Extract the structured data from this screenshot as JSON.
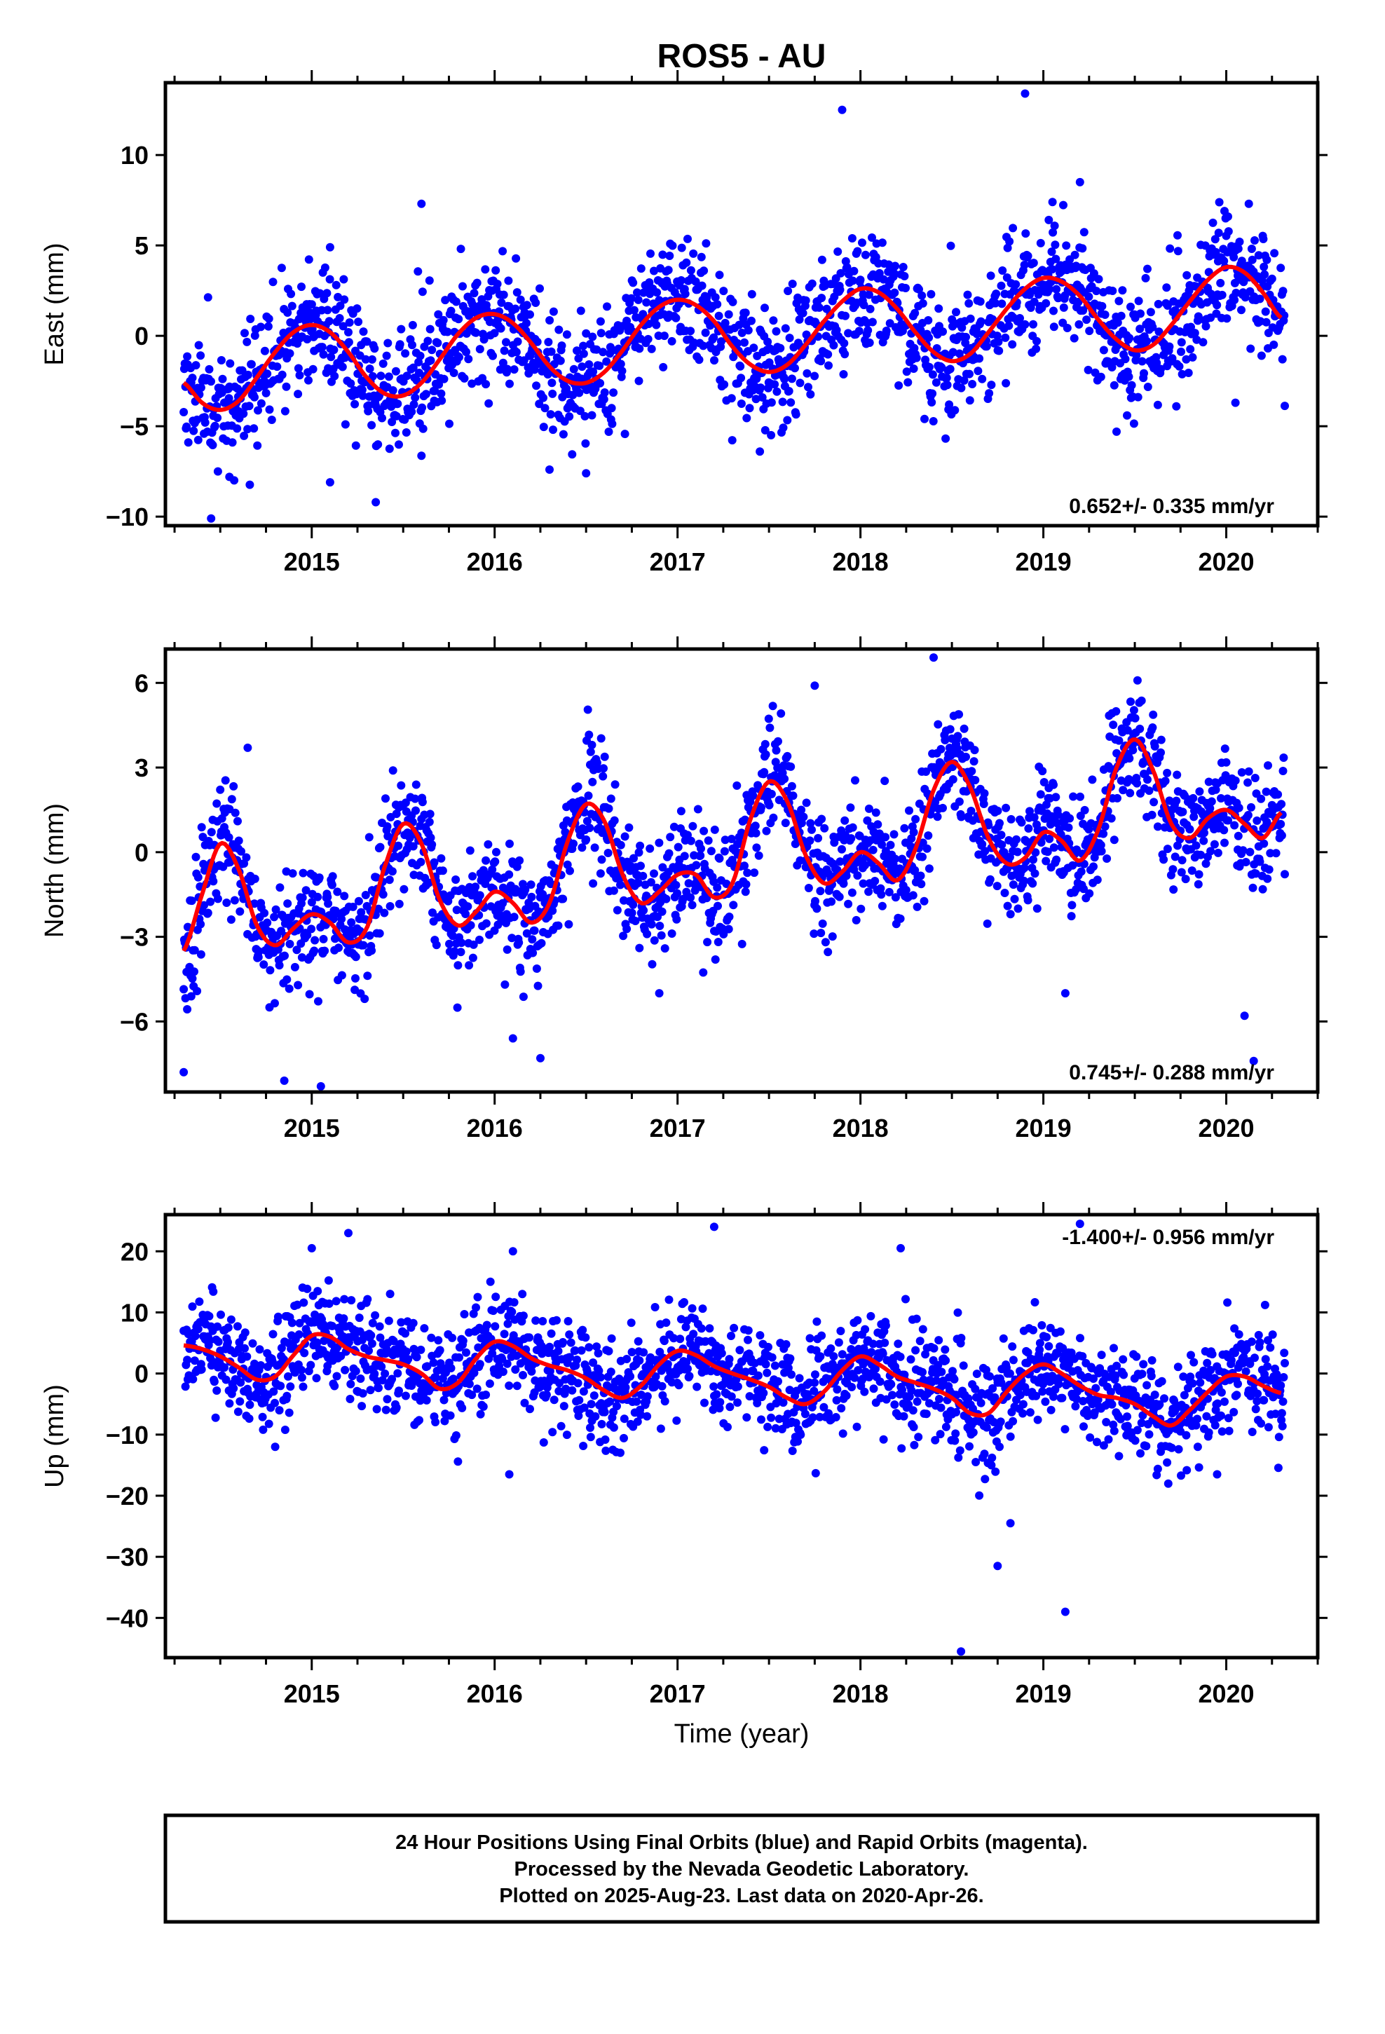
{
  "chart_data": {
    "title": "ROS5 - AU",
    "xlabel": "Time (year)",
    "footer": [
      "24 Hour Positions Using Final Orbits (blue) and Rapid Orbits (magenta).",
      "Processed by the Nevada Geodetic Laboratory.",
      "Plotted on 2025-Aug-23. Last data on 2020-Apr-26."
    ],
    "colors": {
      "points": "#0000ff",
      "fit": "#ff0000",
      "frame": "#000000"
    },
    "panels": [
      {
        "type": "scatter",
        "ylabel": "East (mm)",
        "ylim": [
          -10.5,
          14
        ],
        "xlim": [
          2014.2,
          2020.5
        ],
        "yticks": [
          -10,
          -5,
          0,
          5,
          10
        ],
        "xticks": [
          2015,
          2016,
          2017,
          2018,
          2019,
          2020
        ],
        "rate_text": "0.652+/- 0.335 mm/yr",
        "rate_position": "bottom-right",
        "fit": {
          "x": [
            2014.3,
            2014.4,
            2014.5,
            2014.6,
            2014.7,
            2014.8,
            2014.9,
            2015.0,
            2015.1,
            2015.2,
            2015.3,
            2015.4,
            2015.5,
            2015.6,
            2015.7,
            2015.8,
            2015.9,
            2016.0,
            2016.1,
            2016.2,
            2016.3,
            2016.4,
            2016.5,
            2016.6,
            2016.7,
            2016.8,
            2016.9,
            2017.0,
            2017.1,
            2017.2,
            2017.3,
            2017.4,
            2017.5,
            2017.6,
            2017.7,
            2017.8,
            2017.9,
            2018.0,
            2018.1,
            2018.2,
            2018.3,
            2018.4,
            2018.5,
            2018.6,
            2018.7,
            2018.8,
            2018.9,
            2019.0,
            2019.1,
            2019.2,
            2019.3,
            2019.4,
            2019.5,
            2019.6,
            2019.7,
            2019.8,
            2019.9,
            2020.0,
            2020.1,
            2020.2,
            2020.3
          ],
          "y": [
            -2.6,
            -3.7,
            -4.1,
            -3.6,
            -2.3,
            -0.9,
            0.2,
            0.6,
            0.2,
            -0.9,
            -2.3,
            -3.2,
            -3.3,
            -2.6,
            -1.3,
            0.1,
            1.0,
            1.2,
            0.7,
            -0.4,
            -1.7,
            -2.5,
            -2.6,
            -2.0,
            -0.8,
            0.6,
            1.6,
            2.0,
            1.7,
            0.8,
            -0.6,
            -1.6,
            -2.0,
            -1.6,
            -0.5,
            0.8,
            1.9,
            2.6,
            2.4,
            1.5,
            0.2,
            -0.9,
            -1.4,
            -1.0,
            0.2,
            1.5,
            2.6,
            3.2,
            3.0,
            2.2,
            0.9,
            -0.2,
            -0.8,
            -0.5,
            0.6,
            1.9,
            3.1,
            3.8,
            3.5,
            2.4,
            1.0
          ]
        },
        "points_model": {
          "comment": "Daily positions scatter around the fitted curve",
          "x_start": 2014.3,
          "x_end": 2020.32,
          "count": 1900,
          "spread": 1.7,
          "seed": 11,
          "outliers": [
            [
              2015.35,
              -9.2
            ],
            [
              2014.45,
              -10.1
            ],
            [
              2015.6,
              7.3
            ],
            [
              2015.1,
              4.9
            ],
            [
              2017.9,
              12.5
            ],
            [
              2018.9,
              13.4
            ],
            [
              2019.2,
              8.5
            ],
            [
              2019.05,
              7.4
            ],
            [
              2016.5,
              -7.6
            ],
            [
              2016.3,
              -7.4
            ],
            [
              2017.45,
              -6.4
            ],
            [
              2018.35,
              -4.6
            ],
            [
              2019.4,
              -5.3
            ],
            [
              2020.05,
              -3.7
            ],
            [
              2015.1,
              -8.1
            ],
            [
              2014.55,
              -7.8
            ]
          ]
        }
      },
      {
        "type": "scatter",
        "ylabel": "North (mm)",
        "ylim": [
          -8.5,
          7.2
        ],
        "xlim": [
          2014.2,
          2020.5
        ],
        "yticks": [
          -6,
          -3,
          0,
          3,
          6
        ],
        "xticks": [
          2015,
          2016,
          2017,
          2018,
          2019,
          2020
        ],
        "rate_text": "0.745+/- 0.288 mm/yr",
        "rate_position": "bottom-right",
        "fit": {
          "x": [
            2014.3,
            2014.4,
            2014.5,
            2014.6,
            2014.7,
            2014.8,
            2014.9,
            2015.0,
            2015.1,
            2015.2,
            2015.3,
            2015.4,
            2015.5,
            2015.6,
            2015.7,
            2015.8,
            2015.9,
            2016.0,
            2016.1,
            2016.2,
            2016.3,
            2016.4,
            2016.5,
            2016.6,
            2016.7,
            2016.8,
            2016.9,
            2017.0,
            2017.1,
            2017.2,
            2017.3,
            2017.4,
            2017.5,
            2017.6,
            2017.7,
            2017.8,
            2017.9,
            2018.0,
            2018.1,
            2018.2,
            2018.3,
            2018.4,
            2018.5,
            2018.6,
            2018.7,
            2018.8,
            2018.9,
            2019.0,
            2019.1,
            2019.2,
            2019.3,
            2019.4,
            2019.5,
            2019.6,
            2019.7,
            2019.8,
            2019.9,
            2020.0,
            2020.1,
            2020.2,
            2020.3
          ],
          "y": [
            -3.5,
            -1.5,
            0.3,
            -0.6,
            -2.6,
            -3.3,
            -2.7,
            -2.2,
            -2.5,
            -3.2,
            -2.7,
            -0.5,
            1.0,
            0.3,
            -1.7,
            -2.6,
            -2.1,
            -1.4,
            -1.8,
            -2.5,
            -1.8,
            0.4,
            1.7,
            1.1,
            -0.8,
            -1.8,
            -1.4,
            -0.8,
            -0.8,
            -1.6,
            -1.1,
            1.2,
            2.5,
            1.8,
            -0.1,
            -1.1,
            -0.7,
            0.0,
            -0.4,
            -1.0,
            0.1,
            2.2,
            3.2,
            2.3,
            0.5,
            -0.4,
            -0.2,
            0.7,
            0.4,
            -0.3,
            0.8,
            3.0,
            4.0,
            2.9,
            1.0,
            0.5,
            1.2,
            1.5,
            1.0,
            0.5,
            1.4
          ]
        },
        "points_model": {
          "comment": "Daily positions scatter around the fitted curve",
          "x_start": 2014.3,
          "x_end": 2020.32,
          "count": 1900,
          "spread": 1.05,
          "seed": 23,
          "outliers": [
            [
              2014.3,
              -7.8
            ],
            [
              2014.85,
              -8.1
            ],
            [
              2015.05,
              -8.3
            ],
            [
              2017.75,
              5.9
            ],
            [
              2018.4,
              6.9
            ],
            [
              2019.12,
              -5.0
            ],
            [
              2020.1,
              -5.8
            ],
            [
              2020.15,
              -7.4
            ],
            [
              2016.9,
              -5.0
            ],
            [
              2016.1,
              -6.6
            ],
            [
              2016.25,
              -7.3
            ],
            [
              2014.65,
              3.7
            ]
          ]
        }
      },
      {
        "type": "scatter",
        "ylabel": "Up (mm)",
        "ylim": [
          -46.5,
          26
        ],
        "xlim": [
          2014.2,
          2020.5
        ],
        "yticks": [
          -40,
          -30,
          -20,
          -10,
          0,
          10,
          20
        ],
        "xticks": [
          2015,
          2016,
          2017,
          2018,
          2019,
          2020
        ],
        "rate_text": "-1.400+/- 0.956 mm/yr",
        "rate_position": "top-right",
        "fit": {
          "x": [
            2014.3,
            2014.4,
            2014.5,
            2014.6,
            2014.7,
            2014.8,
            2014.9,
            2015.0,
            2015.1,
            2015.2,
            2015.3,
            2015.4,
            2015.5,
            2015.6,
            2015.7,
            2015.8,
            2015.9,
            2016.0,
            2016.1,
            2016.2,
            2016.3,
            2016.4,
            2016.5,
            2016.6,
            2016.7,
            2016.8,
            2016.9,
            2017.0,
            2017.1,
            2017.2,
            2017.3,
            2017.4,
            2017.5,
            2017.6,
            2017.7,
            2017.8,
            2017.9,
            2018.0,
            2018.1,
            2018.2,
            2018.3,
            2018.4,
            2018.5,
            2018.6,
            2018.7,
            2018.8,
            2018.9,
            2019.0,
            2019.1,
            2019.2,
            2019.3,
            2019.4,
            2019.5,
            2019.6,
            2019.7,
            2019.8,
            2019.9,
            2020.0,
            2020.1,
            2020.2,
            2020.3
          ],
          "y": [
            4.6,
            4.0,
            2.8,
            1.0,
            -1.0,
            -0.5,
            3.0,
            6.2,
            6.0,
            4.0,
            2.8,
            2.2,
            1.5,
            0.0,
            -2.5,
            -1.5,
            2.5,
            5.2,
            4.5,
            2.5,
            1.3,
            0.5,
            -0.8,
            -2.8,
            -4.0,
            -2.0,
            1.5,
            3.7,
            3.0,
            1.2,
            0.0,
            -1.0,
            -2.2,
            -4.0,
            -5.0,
            -3.0,
            0.5,
            2.8,
            1.5,
            -0.5,
            -1.5,
            -2.5,
            -4.0,
            -6.5,
            -6.5,
            -3.0,
            0.0,
            1.5,
            0.0,
            -2.0,
            -3.5,
            -4.0,
            -5.0,
            -7.0,
            -8.5,
            -6.0,
            -3.0,
            -0.5,
            -0.5,
            -2.0,
            -3.2
          ]
        },
        "points_model": {
          "comment": "Daily positions scatter around the fitted curve",
          "x_start": 2014.3,
          "x_end": 2020.32,
          "count": 1900,
          "spread": 4.4,
          "seed": 37,
          "outliers": [
            [
              2018.55,
              -45.5
            ],
            [
              2019.12,
              -39.0
            ],
            [
              2018.75,
              -31.5
            ],
            [
              2018.82,
              -24.5
            ],
            [
              2016.08,
              -16.5
            ],
            [
              2019.2,
              24.5
            ],
            [
              2017.2,
              24.0
            ],
            [
              2015.2,
              23.0
            ],
            [
              2018.22,
              20.5
            ],
            [
              2014.8,
              -12.0
            ],
            [
              2015.0,
              20.5
            ],
            [
              2016.1,
              20.0
            ],
            [
              2019.95,
              -16.5
            ]
          ]
        }
      }
    ]
  }
}
